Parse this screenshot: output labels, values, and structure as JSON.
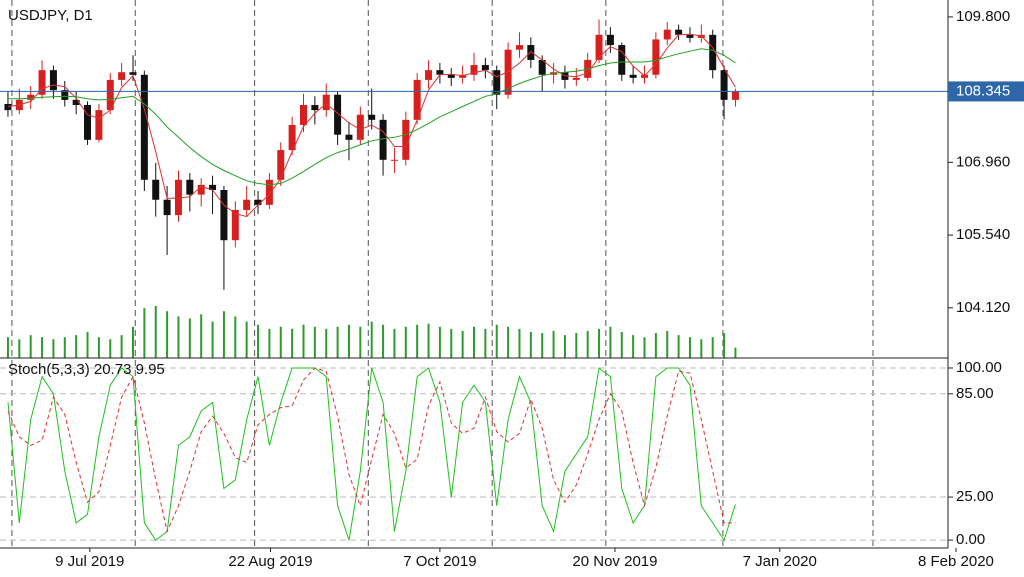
{
  "chart_data": {
    "type": "candlestick",
    "title": "USDJPY, D1",
    "xlim": [
      -0.7,
      82.7
    ],
    "xticks": [
      {
        "value": 7.2,
        "label": "9 Jul 2019"
      },
      {
        "value": 23.1,
        "label": "22 Aug 2019"
      },
      {
        "value": 38,
        "label": "7 Oct 2019"
      },
      {
        "value": 53.4,
        "label": "20 Nov 2019"
      },
      {
        "value": 67.9,
        "label": "7 Jan 2020"
      },
      {
        "value": 83.4,
        "label": "8 Feb 2020"
      }
    ],
    "period_separators": [
      0.35,
      11.2,
      21.7,
      31.7,
      42.6,
      52.6,
      62.9,
      76.1
    ],
    "ylim": [
      103.14,
      110.13
    ],
    "yticks": [
      {
        "value": 109.8,
        "label": "109.800"
      },
      {
        "value": 106.96,
        "label": "106.960"
      },
      {
        "value": 105.54,
        "label": "105.540"
      },
      {
        "value": 104.12,
        "label": "104.120"
      }
    ],
    "current_price": {
      "value": 108.345,
      "label": "108.345",
      "color": "#2d67a8"
    },
    "up_color": "#d62020",
    "down_color": "#111111",
    "open": [
      108.1,
      107.98,
      108.18,
      108.28,
      108.76,
      108.37,
      108.18,
      108.08,
      107.4,
      107.98,
      108.57,
      108.72,
      108.67,
      106.62,
      106.23,
      105.93,
      106.62,
      106.33,
      106.52,
      106.42,
      105.44,
      106.03,
      106.23,
      106.13,
      106.62,
      107.2,
      107.69,
      108.08,
      107.98,
      108.28,
      107.5,
      107.4,
      107.89,
      107.79,
      107.01,
      107.01,
      107.79,
      108.57,
      108.76,
      108.67,
      108.61,
      108.67,
      108.86,
      108.76,
      108.28,
      109.16,
      109.25,
      108.96,
      108.67,
      108.72,
      108.57,
      108.61,
      108.96,
      109.45,
      109.25,
      108.67,
      108.61,
      108.67,
      109.36,
      109.55,
      109.45,
      109.39,
      109.45,
      108.76,
      108.18
    ],
    "high": [
      108.35,
      108.4,
      108.45,
      108.95,
      108.85,
      108.55,
      108.35,
      108.15,
      108.1,
      108.7,
      108.9,
      109.05,
      108.75,
      106.95,
      106.5,
      106.8,
      106.75,
      106.65,
      106.7,
      106.5,
      106.2,
      106.5,
      106.4,
      106.75,
      107.35,
      107.85,
      108.3,
      108.25,
      108.5,
      108.35,
      107.75,
      108.05,
      108.4,
      107.9,
      107.25,
      107.95,
      108.7,
      108.95,
      108.9,
      108.8,
      108.85,
      109.1,
      109.0,
      108.85,
      109.3,
      109.5,
      109.4,
      109.05,
      108.9,
      108.85,
      108.8,
      109.1,
      109.75,
      109.6,
      109.3,
      108.85,
      108.85,
      109.5,
      109.7,
      109.65,
      109.6,
      109.65,
      109.55,
      108.85,
      108.4
    ],
    "low": [
      107.85,
      107.9,
      108.0,
      108.2,
      108.2,
      108.05,
      107.9,
      107.3,
      107.35,
      107.9,
      108.45,
      108.55,
      106.4,
      105.9,
      105.15,
      105.8,
      106.0,
      106.1,
      105.95,
      104.47,
      105.3,
      105.9,
      105.95,
      106.05,
      106.5,
      107.1,
      107.55,
      107.7,
      107.85,
      107.3,
      107.0,
      107.3,
      107.6,
      106.7,
      106.75,
      106.9,
      107.7,
      108.4,
      108.5,
      108.45,
      108.5,
      108.55,
      108.6,
      108.0,
      108.2,
      109.0,
      108.8,
      108.35,
      108.5,
      108.4,
      108.45,
      108.55,
      108.9,
      109.1,
      108.55,
      108.5,
      108.5,
      108.6,
      109.25,
      109.35,
      109.3,
      109.3,
      108.6,
      107.8,
      108.05
    ],
    "close": [
      107.98,
      108.18,
      108.28,
      108.76,
      108.37,
      108.18,
      108.08,
      107.4,
      107.98,
      108.57,
      108.72,
      108.67,
      106.62,
      106.23,
      105.93,
      106.62,
      106.33,
      106.52,
      106.42,
      105.44,
      106.03,
      106.23,
      106.13,
      106.62,
      107.2,
      107.69,
      108.08,
      107.98,
      108.28,
      107.5,
      107.4,
      107.89,
      107.79,
      107.01,
      107.01,
      107.79,
      108.57,
      108.76,
      108.67,
      108.61,
      108.67,
      108.86,
      108.76,
      108.28,
      109.16,
      109.25,
      108.96,
      108.67,
      108.72,
      108.57,
      108.61,
      108.96,
      109.45,
      109.25,
      108.67,
      108.61,
      108.67,
      109.36,
      109.55,
      109.45,
      109.39,
      109.45,
      108.76,
      108.18,
      108.35
    ],
    "moving_averages": [
      {
        "color": "#e03030",
        "values": [
          108.05,
          108.08,
          108.15,
          108.4,
          108.47,
          108.44,
          108.21,
          107.89,
          107.82,
          107.98,
          108.42,
          108.65,
          108.0,
          107.17,
          106.26,
          106.26,
          106.29,
          106.49,
          106.42,
          106.13,
          105.96,
          105.9,
          106.13,
          106.33,
          106.65,
          107.17,
          107.66,
          107.92,
          108.11,
          107.92,
          107.73,
          107.6,
          107.69,
          107.56,
          107.27,
          107.27,
          107.79,
          108.37,
          108.67,
          108.68,
          108.65,
          108.71,
          108.76,
          108.63,
          108.73,
          108.9,
          109.12,
          108.96,
          108.78,
          108.65,
          108.63,
          108.71,
          109.01,
          109.22,
          109.12,
          108.84,
          108.65,
          108.88,
          109.19,
          109.45,
          109.46,
          109.43,
          109.2,
          108.8,
          108.43
        ]
      },
      {
        "color": "#22a022",
        "values": [
          108.2,
          108.2,
          108.21,
          108.23,
          108.24,
          108.25,
          108.24,
          108.2,
          108.18,
          108.19,
          108.22,
          108.25,
          108.1,
          107.9,
          107.65,
          107.45,
          107.25,
          107.07,
          106.92,
          106.8,
          106.7,
          106.6,
          106.55,
          106.52,
          106.55,
          106.65,
          106.78,
          106.92,
          107.05,
          107.15,
          107.22,
          107.3,
          107.38,
          107.42,
          107.45,
          107.5,
          107.6,
          107.72,
          107.85,
          107.95,
          108.05,
          108.15,
          108.25,
          108.3,
          108.4,
          108.5,
          108.58,
          108.65,
          108.7,
          108.72,
          108.74,
          108.78,
          108.85,
          108.9,
          108.92,
          108.92,
          108.92,
          108.95,
          109.02,
          109.08,
          109.13,
          109.18,
          109.15,
          109.05,
          108.9
        ]
      }
    ],
    "volume": {
      "color": "#2f9a2f",
      "values": [
        20,
        18,
        22,
        20,
        18,
        20,
        22,
        25,
        20,
        18,
        22,
        30,
        48,
        50,
        45,
        40,
        38,
        42,
        35,
        45,
        40,
        35,
        32,
        28,
        30,
        28,
        32,
        30,
        28,
        30,
        32,
        30,
        35,
        32,
        28,
        30,
        32,
        33,
        30,
        28,
        26,
        30,
        28,
        32,
        30,
        28,
        25,
        24,
        26,
        22,
        24,
        26,
        28,
        30,
        25,
        22,
        20,
        24,
        26,
        22,
        20,
        18,
        20,
        24,
        10
      ]
    },
    "indicator": {
      "title": "Stoch(5,3,3) 20.73 9.95",
      "ylim": [
        -4.6,
        105.8
      ],
      "yticks": [
        {
          "value": 100,
          "label": "100.00"
        },
        {
          "value": 85,
          "label": "85.00"
        },
        {
          "value": 25,
          "label": "25.00"
        },
        {
          "value": 0,
          "label": "0.00"
        }
      ],
      "series": [
        {
          "color": "#1fc01f",
          "dashed": false,
          "values": [
            80,
            10,
            70,
            95,
            85,
            40,
            10,
            15,
            60,
            90,
            100,
            95,
            10,
            0,
            5,
            55,
            60,
            75,
            80,
            30,
            35,
            70,
            95,
            55,
            80,
            100,
            100,
            100,
            95,
            20,
            0,
            40,
            100,
            80,
            5,
            40,
            95,
            100,
            80,
            25,
            80,
            90,
            80,
            20,
            70,
            95,
            80,
            20,
            5,
            40,
            50,
            60,
            100,
            95,
            30,
            10,
            20,
            95,
            100,
            100,
            90,
            20,
            10,
            0,
            20.73
          ]
        },
        {
          "color": "#e03030",
          "dashed": true,
          "values": [
            75,
            60,
            55,
            58,
            83,
            73,
            45,
            22,
            28,
            55,
            83,
            95,
            68,
            35,
            5,
            20,
            40,
            63,
            72,
            62,
            48,
            45,
            67,
            73,
            77,
            78,
            93,
            100,
            98,
            72,
            38,
            20,
            47,
            73,
            62,
            42,
            47,
            78,
            92,
            68,
            62,
            65,
            83,
            63,
            57,
            62,
            82,
            65,
            35,
            22,
            32,
            50,
            70,
            85,
            75,
            45,
            20,
            42,
            72,
            98,
            97,
            70,
            40,
            10,
            9.95
          ]
        }
      ]
    }
  }
}
